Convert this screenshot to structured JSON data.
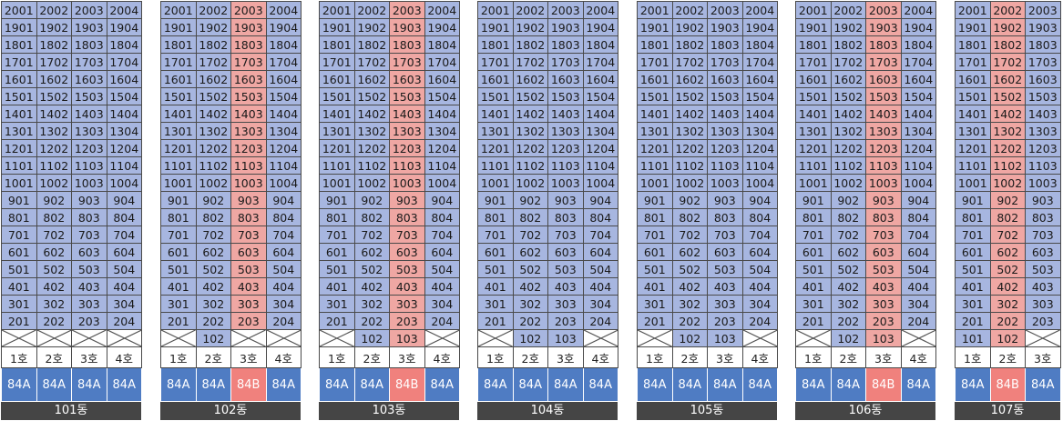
{
  "buildings": [
    {
      "name": "101동",
      "columns": [
        {
          "ho": "1호",
          "type": "84A",
          "floors": [
            "2001",
            "1901",
            "1801",
            "1701",
            "1601",
            "1501",
            "1401",
            "1301",
            "1201",
            "1101",
            "1001",
            "901",
            "801",
            "701",
            "601",
            "501",
            "401",
            "301",
            "201"
          ],
          "extra": null
        },
        {
          "ho": "2호",
          "type": "84A",
          "floors": [
            "2002",
            "1902",
            "1802",
            "1702",
            "1602",
            "1502",
            "1402",
            "1302",
            "1202",
            "1102",
            "1002",
            "902",
            "802",
            "702",
            "602",
            "502",
            "402",
            "302",
            "202"
          ],
          "extra": null
        },
        {
          "ho": "3호",
          "type": "84A",
          "floors": [
            "2003",
            "1903",
            "1803",
            "1703",
            "1603",
            "1503",
            "1403",
            "1303",
            "1203",
            "1103",
            "1003",
            "903",
            "803",
            "703",
            "603",
            "503",
            "403",
            "303",
            "203"
          ],
          "extra": null
        },
        {
          "ho": "4호",
          "type": "84A",
          "floors": [
            "2004",
            "1904",
            "1804",
            "1704",
            "1604",
            "1504",
            "1404",
            "1304",
            "1204",
            "1104",
            "1004",
            "904",
            "804",
            "704",
            "604",
            "504",
            "404",
            "304",
            "204"
          ],
          "extra": null
        }
      ]
    },
    {
      "name": "102동",
      "columns": [
        {
          "ho": "1호",
          "type": "84A",
          "floors": [
            "2001",
            "1901",
            "1801",
            "1701",
            "1601",
            "1501",
            "1401",
            "1301",
            "1201",
            "1101",
            "1001",
            "901",
            "801",
            "701",
            "601",
            "501",
            "401",
            "301",
            "201"
          ],
          "extra": null
        },
        {
          "ho": "2호",
          "type": "84A",
          "floors": [
            "2002",
            "1902",
            "1802",
            "1702",
            "1602",
            "1502",
            "1402",
            "1302",
            "1202",
            "1102",
            "1002",
            "902",
            "802",
            "702",
            "602",
            "502",
            "402",
            "302",
            "202"
          ],
          "extra": "102"
        },
        {
          "ho": "3호",
          "type": "84B",
          "hl": true,
          "floors": [
            "2003",
            "1903",
            "1803",
            "1703",
            "1603",
            "1503",
            "1403",
            "1303",
            "1203",
            "1103",
            "1003",
            "903",
            "803",
            "703",
            "603",
            "503",
            "403",
            "303",
            "203"
          ],
          "extra": null
        },
        {
          "ho": "4호",
          "type": "84A",
          "floors": [
            "2004",
            "1904",
            "1804",
            "1704",
            "1604",
            "1504",
            "1404",
            "1304",
            "1204",
            "1104",
            "1004",
            "904",
            "804",
            "704",
            "604",
            "504",
            "404",
            "304",
            "204"
          ],
          "extra": null
        }
      ]
    },
    {
      "name": "103동",
      "columns": [
        {
          "ho": "1호",
          "type": "84A",
          "floors": [
            "2001",
            "1901",
            "1801",
            "1701",
            "1601",
            "1501",
            "1401",
            "1301",
            "1201",
            "1101",
            "1001",
            "901",
            "801",
            "701",
            "601",
            "501",
            "401",
            "301",
            "201"
          ],
          "extra": null
        },
        {
          "ho": "2호",
          "type": "84A",
          "floors": [
            "2002",
            "1902",
            "1802",
            "1702",
            "1602",
            "1502",
            "1402",
            "1302",
            "1202",
            "1102",
            "1002",
            "902",
            "802",
            "702",
            "602",
            "502",
            "402",
            "302",
            "202"
          ],
          "extra": "102"
        },
        {
          "ho": "3호",
          "type": "84B",
          "hl": true,
          "floors": [
            "2003",
            "1903",
            "1803",
            "1703",
            "1603",
            "1503",
            "1403",
            "1303",
            "1203",
            "1103",
            "1003",
            "903",
            "803",
            "703",
            "603",
            "503",
            "403",
            "303",
            "203"
          ],
          "extra": "103"
        },
        {
          "ho": "4호",
          "type": "84A",
          "floors": [
            "2004",
            "1904",
            "1804",
            "1704",
            "1604",
            "1504",
            "1404",
            "1304",
            "1204",
            "1104",
            "1004",
            "904",
            "804",
            "704",
            "604",
            "504",
            "404",
            "304",
            "204"
          ],
          "extra": null
        }
      ]
    },
    {
      "name": "104동",
      "columns": [
        {
          "ho": "1호",
          "type": "84A",
          "floors": [
            "2001",
            "1901",
            "1801",
            "1701",
            "1601",
            "1501",
            "1401",
            "1301",
            "1201",
            "1101",
            "1001",
            "901",
            "801",
            "701",
            "601",
            "501",
            "401",
            "301",
            "201"
          ],
          "extra": null
        },
        {
          "ho": "2호",
          "type": "84A",
          "floors": [
            "2002",
            "1902",
            "1802",
            "1702",
            "1602",
            "1502",
            "1402",
            "1302",
            "1202",
            "1102",
            "1002",
            "902",
            "802",
            "702",
            "602",
            "502",
            "402",
            "302",
            "202"
          ],
          "extra": "102"
        },
        {
          "ho": "3호",
          "type": "84A",
          "floors": [
            "2003",
            "1903",
            "1803",
            "1703",
            "1603",
            "1503",
            "1403",
            "1303",
            "1203",
            "1103",
            "1003",
            "903",
            "803",
            "703",
            "603",
            "503",
            "403",
            "303",
            "203"
          ],
          "extra": "103"
        },
        {
          "ho": "4호",
          "type": "84A",
          "floors": [
            "2004",
            "1904",
            "1804",
            "1704",
            "1604",
            "1504",
            "1404",
            "1304",
            "1204",
            "1104",
            "1004",
            "904",
            "804",
            "704",
            "604",
            "504",
            "404",
            "304",
            "204"
          ],
          "extra": null
        }
      ]
    },
    {
      "name": "105동",
      "columns": [
        {
          "ho": "1호",
          "type": "84A",
          "floors": [
            "2001",
            "1901",
            "1801",
            "1701",
            "1601",
            "1501",
            "1401",
            "1301",
            "1201",
            "1101",
            "1001",
            "901",
            "801",
            "701",
            "601",
            "501",
            "401",
            "301",
            "201"
          ],
          "extra": null
        },
        {
          "ho": "2호",
          "type": "84A",
          "floors": [
            "2002",
            "1902",
            "1802",
            "1702",
            "1602",
            "1502",
            "1402",
            "1302",
            "1202",
            "1102",
            "1002",
            "902",
            "802",
            "702",
            "602",
            "502",
            "402",
            "302",
            "202"
          ],
          "extra": "102"
        },
        {
          "ho": "3호",
          "type": "84A",
          "floors": [
            "2003",
            "1903",
            "1803",
            "1703",
            "1603",
            "1503",
            "1403",
            "1303",
            "1203",
            "1103",
            "1003",
            "903",
            "803",
            "703",
            "603",
            "503",
            "403",
            "303",
            "203"
          ],
          "extra": "103"
        },
        {
          "ho": "4호",
          "type": "84A",
          "floors": [
            "2004",
            "1904",
            "1804",
            "1704",
            "1604",
            "1504",
            "1404",
            "1304",
            "1204",
            "1104",
            "1004",
            "904",
            "804",
            "704",
            "604",
            "504",
            "404",
            "304",
            "204"
          ],
          "extra": null
        }
      ]
    },
    {
      "name": "106동",
      "columns": [
        {
          "ho": "1호",
          "type": "84A",
          "floors": [
            "2001",
            "1901",
            "1801",
            "1701",
            "1601",
            "1501",
            "1401",
            "1301",
            "1201",
            "1101",
            "1001",
            "901",
            "801",
            "701",
            "601",
            "501",
            "401",
            "301",
            "201"
          ],
          "extra": null
        },
        {
          "ho": "2호",
          "type": "84A",
          "floors": [
            "2002",
            "1902",
            "1802",
            "1702",
            "1602",
            "1502",
            "1402",
            "1302",
            "1202",
            "1102",
            "1002",
            "902",
            "802",
            "702",
            "602",
            "502",
            "402",
            "302",
            "202"
          ],
          "extra": "102"
        },
        {
          "ho": "3호",
          "type": "84B",
          "hl": true,
          "floors": [
            "2003",
            "1903",
            "1803",
            "1703",
            "1603",
            "1503",
            "1403",
            "1303",
            "1203",
            "1103",
            "1003",
            "903",
            "803",
            "703",
            "603",
            "503",
            "403",
            "303",
            "203"
          ],
          "extra": "103"
        },
        {
          "ho": "4호",
          "type": "84A",
          "floors": [
            "2004",
            "1904",
            "1804",
            "1704",
            "1604",
            "1504",
            "1404",
            "1304",
            "1204",
            "1104",
            "1004",
            "904",
            "804",
            "704",
            "604",
            "504",
            "404",
            "304",
            "204"
          ],
          "extra": null
        }
      ]
    },
    {
      "name": "107동",
      "columns": [
        {
          "ho": "1호",
          "type": "84A",
          "floors": [
            "2001",
            "1901",
            "1801",
            "1701",
            "1601",
            "1501",
            "1401",
            "1301",
            "1201",
            "1101",
            "1001",
            "901",
            "801",
            "701",
            "601",
            "501",
            "401",
            "301",
            "201"
          ],
          "extra": "101"
        },
        {
          "ho": "2호",
          "type": "84B",
          "hl": true,
          "floors": [
            "2002",
            "1902",
            "1802",
            "1702",
            "1602",
            "1502",
            "1402",
            "1302",
            "1202",
            "1102",
            "1002",
            "902",
            "802",
            "702",
            "602",
            "502",
            "402",
            "302",
            "202"
          ],
          "extra": "102"
        },
        {
          "ho": "3호",
          "type": "84A",
          "floors": [
            "2003",
            "1903",
            "1803",
            "1703",
            "1603",
            "1503",
            "1403",
            "1303",
            "1203",
            "1103",
            "1003",
            "903",
            "803",
            "703",
            "603",
            "503",
            "403",
            "303",
            "203"
          ],
          "extra": null
        }
      ]
    }
  ]
}
